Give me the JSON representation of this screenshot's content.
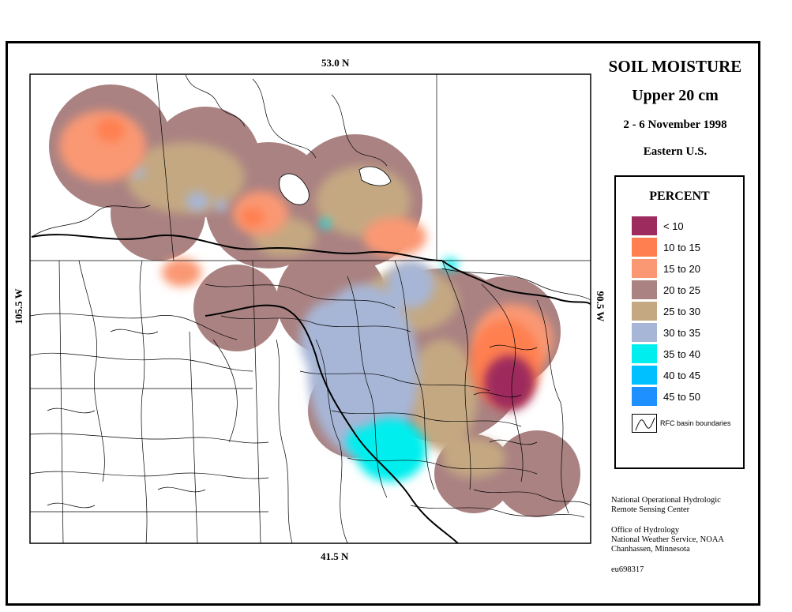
{
  "title": {
    "line1": "SOIL MOISTURE",
    "line2": "Upper 20 cm",
    "line3": "2 - 6 November 1998",
    "line4": "Eastern U.S."
  },
  "axes": {
    "top": "53.0 N",
    "bottom": "41.5 N",
    "left": "105.5 W",
    "right": "90.5 W"
  },
  "legend": {
    "heading": "PERCENT",
    "items": [
      {
        "label": "< 10",
        "color": "#9e2b5d"
      },
      {
        "label": "10 to 15",
        "color": "#ff7f50"
      },
      {
        "label": "15 to 20",
        "color": "#fa9873"
      },
      {
        "label": "20 to 25",
        "color": "#aa8282"
      },
      {
        "label": "25 to 30",
        "color": "#c4a882"
      },
      {
        "label": "30 to 35",
        "color": "#a7b6d6"
      },
      {
        "label": "35 to 40",
        "color": "#00eeee"
      },
      {
        "label": "40 to 45",
        "color": "#00c0ff"
      },
      {
        "label": "45 to 50",
        "color": "#1e90ff"
      }
    ],
    "basin_label": "RFC basin boundaries"
  },
  "credits": {
    "nohrsc": [
      "National Operational Hydrologic",
      "Remote Sensing Center"
    ],
    "office": [
      "Office of Hydrology",
      "National Weather Service, NOAA",
      "Chanhassen, Minnesota"
    ],
    "id": "eu698317"
  }
}
